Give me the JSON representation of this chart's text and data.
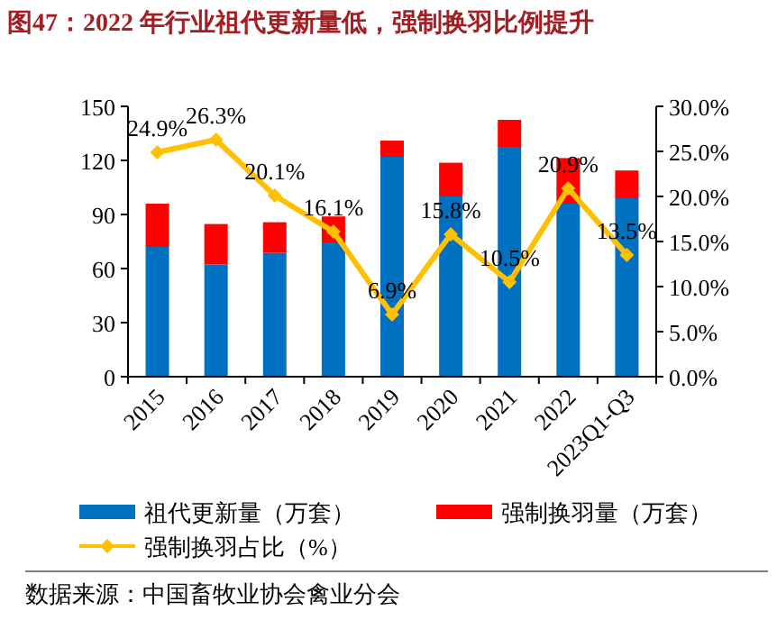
{
  "chart_data": {
    "type": "bar",
    "title": "图47：2022 年行业祖代更新量低，强制换羽比例提升",
    "categories": [
      "2015",
      "2016",
      "2017",
      "2018",
      "2019",
      "2020",
      "2021",
      "2022",
      "2023Q1-Q3"
    ],
    "stacked": true,
    "series": [
      {
        "name": "祖代更新量（万套）",
        "color": "#0070c0",
        "values": [
          72,
          62.3,
          68.7,
          74.5,
          122,
          100,
          127.5,
          96,
          99
        ]
      },
      {
        "name": "强制换羽量（万套）",
        "color": "#ff0000",
        "values": [
          24,
          22.4,
          17,
          14.4,
          9,
          18.7,
          15,
          25.3,
          15.4
        ]
      },
      {
        "name": "强制换羽占比（%）",
        "type": "line",
        "axis": "y2",
        "color": "#ffc000",
        "marker": "diamond",
        "values": [
          24.9,
          26.3,
          20.1,
          16.1,
          6.9,
          15.8,
          10.5,
          20.9,
          13.5
        ],
        "value_labels": [
          "24.9%",
          "26.3%",
          "20.1%",
          "16.1%",
          "6.9%",
          "15.8%",
          "10.5%",
          "20.9%",
          "13.5%"
        ]
      }
    ],
    "ylim": [
      0,
      150
    ],
    "yticks": [
      0,
      30,
      60,
      90,
      120,
      150
    ],
    "y2lim": [
      0,
      30
    ],
    "y2ticks": [
      {
        "value": 0,
        "label": "0.0%"
      },
      {
        "value": 5,
        "label": "5.0%"
      },
      {
        "value": 10,
        "label": "10.0%"
      },
      {
        "value": 15,
        "label": "15.0%"
      },
      {
        "value": 20,
        "label": "20.0%"
      },
      {
        "value": 25,
        "label": "25.0%"
      },
      {
        "value": 30,
        "label": "30.0%"
      }
    ],
    "grid": false,
    "legend": "bottom",
    "annotations": [
      "数据来源：中国畜牧业协会禽业分会"
    ]
  }
}
